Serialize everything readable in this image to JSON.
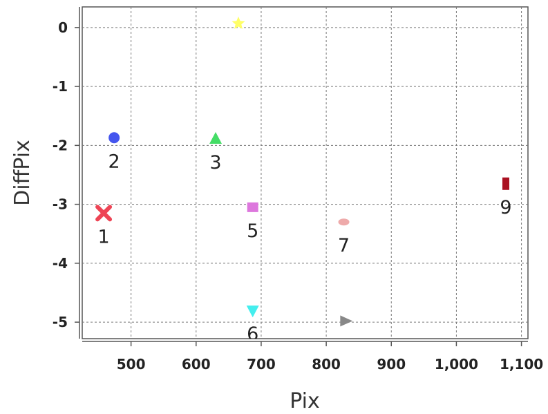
{
  "chart_data": {
    "type": "scatter",
    "xlabel": "Pix",
    "ylabel": "DiffPix",
    "xlim": [
      425,
      1110
    ],
    "ylim": [
      -5.28,
      0.35
    ],
    "x_ticks": [
      500,
      600,
      700,
      800,
      900,
      1000,
      1100
    ],
    "x_tick_labels": [
      "500",
      "600",
      "700",
      "800",
      "900",
      "1,000",
      "1,100"
    ],
    "y_ticks": [
      0,
      -1,
      -2,
      -3,
      -4,
      -5
    ],
    "y_tick_labels": [
      "0",
      "-1",
      "-2",
      "-3",
      "-4",
      "-5"
    ],
    "grid": true,
    "points": [
      {
        "label": "1",
        "x": 458,
        "y": -3.15,
        "marker": "x",
        "color": "#ee4455"
      },
      {
        "label": "2",
        "x": 474,
        "y": -1.87,
        "marker": "circle",
        "color": "#4455ee"
      },
      {
        "label": "3",
        "x": 630,
        "y": -1.89,
        "marker": "triangle-up",
        "color": "#44dd66"
      },
      {
        "label": "",
        "x": 665,
        "y": 0.07,
        "marker": "star",
        "color": "#ffff66"
      },
      {
        "label": "5",
        "x": 687,
        "y": -3.05,
        "marker": "square",
        "color": "#dd77dd"
      },
      {
        "label": "6",
        "x": 687,
        "y": -4.8,
        "marker": "triangle-down",
        "color": "#44eeee"
      },
      {
        "label": "7",
        "x": 827,
        "y": -3.3,
        "marker": "ellipse",
        "color": "#eeaaaa"
      },
      {
        "label": "",
        "x": 830,
        "y": -4.98,
        "marker": "triangle-right",
        "color": "#888888"
      },
      {
        "label": "9",
        "x": 1076,
        "y": -2.65,
        "marker": "rect",
        "color": "#aa1122"
      }
    ]
  }
}
